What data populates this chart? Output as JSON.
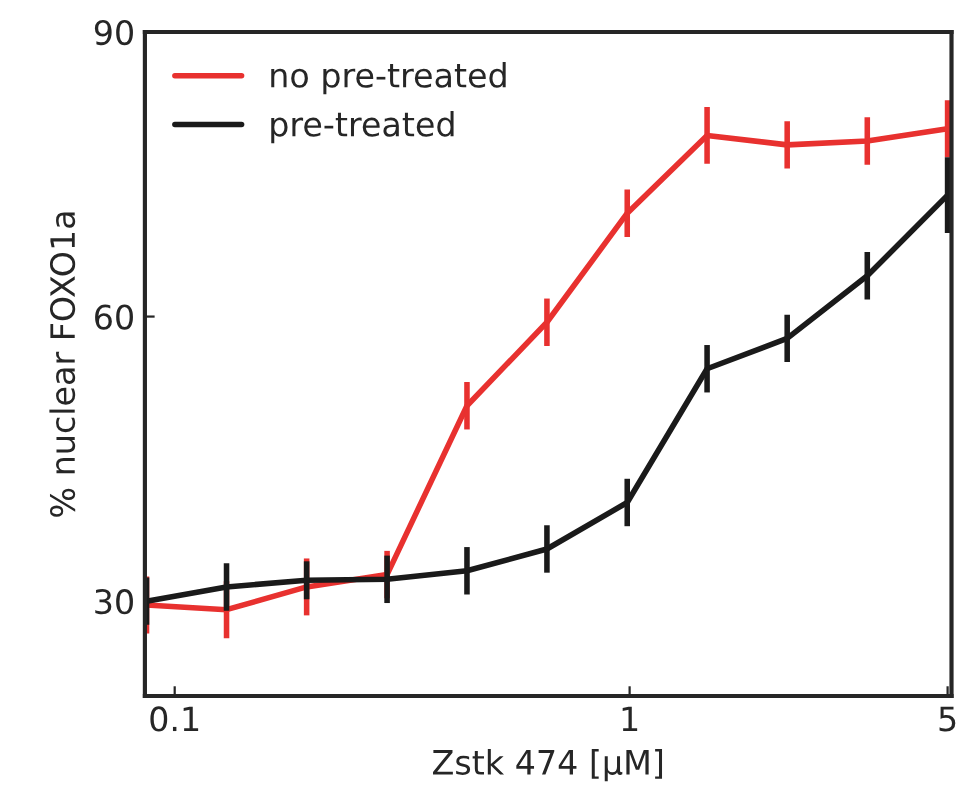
{
  "chart_data": {
    "type": "line",
    "xlabel": "Zstk 474 [μM]",
    "ylabel": "% nuclear FOXO1a",
    "x": [
      0.0867,
      0.13,
      0.195,
      0.293,
      0.439,
      0.658,
      0.988,
      1.48,
      2.22,
      3.33,
      5
    ],
    "series": [
      {
        "name": "no pre-treated",
        "color": "#e8312f",
        "values": [
          29.6,
          29.1,
          31.5,
          32.8,
          50.6,
          59.4,
          70.9,
          79.1,
          78.1,
          78.5,
          79.8
        ],
        "errors": [
          3,
          3,
          3,
          2.5,
          2.5,
          2.5,
          2.5,
          3,
          2.5,
          2.5,
          3
        ]
      },
      {
        "name": "pre-treated",
        "color": "#1a1a1a",
        "values": [
          30,
          31.5,
          32.2,
          32.3,
          33.2,
          35.5,
          40.4,
          54.5,
          57.7,
          64.3,
          72.8
        ],
        "errors": [
          2.5,
          2.5,
          2,
          2.5,
          2.5,
          2.5,
          2.5,
          2.5,
          2.5,
          2.5,
          4
        ]
      }
    ],
    "log": "x",
    "xlim": [
      0.086,
      5.1
    ],
    "xticks": [
      0.1,
      1,
      5
    ],
    "ylim": [
      20,
      90
    ],
    "yticks": [
      30,
      60,
      90
    ],
    "grid": false,
    "legend": "top left",
    "marker": "none",
    "line_style": "solid"
  }
}
